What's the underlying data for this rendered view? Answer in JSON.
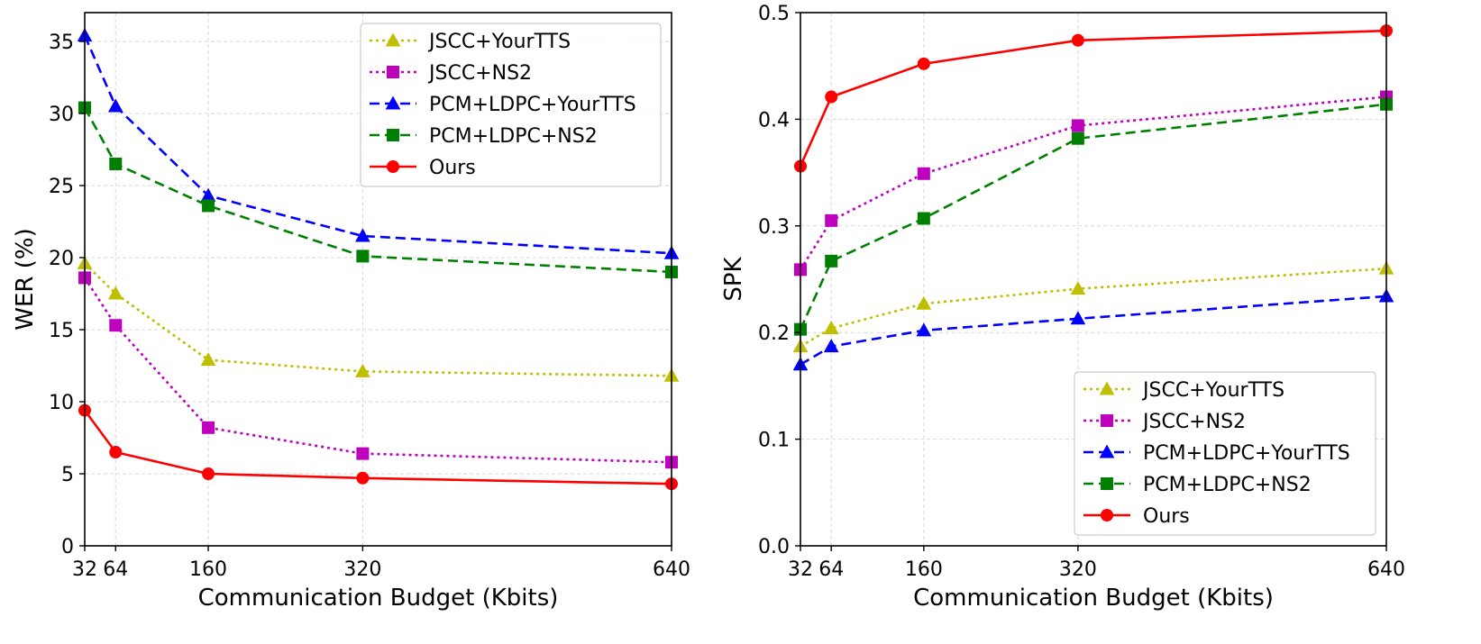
{
  "chart_data": [
    {
      "type": "line",
      "title": "",
      "xlabel": "Communication Budget (Kbits)",
      "ylabel": "WER (%)",
      "x": [
        32,
        64,
        160,
        320,
        640
      ],
      "xticks": [
        "32",
        "64",
        "160",
        "320",
        "640"
      ],
      "yticks": [
        "0",
        "5",
        "10",
        "15",
        "20",
        "25",
        "30",
        "35"
      ],
      "xlim": [
        32,
        640
      ],
      "ylim": [
        0,
        37
      ],
      "grid": true,
      "legend_position": "top-right",
      "series": [
        {
          "name": "JSCC+YourTTS",
          "values": [
            19.6,
            17.5,
            12.9,
            12.1,
            11.8
          ],
          "color": "#bfbf00",
          "marker": "triangle",
          "dash": "dotted"
        },
        {
          "name": "JSCC+NS2",
          "values": [
            18.6,
            15.3,
            8.2,
            6.4,
            5.8
          ],
          "color": "#bf00bf",
          "marker": "square",
          "dash": "dotted"
        },
        {
          "name": "PCM+LDPC+YourTTS",
          "values": [
            35.4,
            30.5,
            24.3,
            21.5,
            20.3
          ],
          "color": "#0000ff",
          "marker": "triangle",
          "dash": "dashed"
        },
        {
          "name": "PCM+LDPC+NS2",
          "values": [
            30.4,
            26.5,
            23.6,
            20.1,
            19.0
          ],
          "color": "#008000",
          "marker": "square",
          "dash": "dashed"
        },
        {
          "name": "Ours",
          "values": [
            9.4,
            6.5,
            5.0,
            4.7,
            4.3
          ],
          "color": "#ff0000",
          "marker": "circle",
          "dash": "solid"
        }
      ]
    },
    {
      "type": "line",
      "title": "",
      "xlabel": "Communication Budget (Kbits)",
      "ylabel": "SPK",
      "x": [
        32,
        64,
        160,
        320,
        640
      ],
      "xticks": [
        "32",
        "64",
        "160",
        "320",
        "640"
      ],
      "yticks": [
        "0.0",
        "0.1",
        "0.2",
        "0.3",
        "0.4",
        "0.5"
      ],
      "xlim": [
        32,
        640
      ],
      "ylim": [
        0,
        0.5
      ],
      "grid": true,
      "legend_position": "bottom-right",
      "series": [
        {
          "name": "JSCC+YourTTS",
          "values": [
            0.187,
            0.204,
            0.227,
            0.241,
            0.26
          ],
          "color": "#bfbf00",
          "marker": "triangle",
          "dash": "dotted"
        },
        {
          "name": "JSCC+NS2",
          "values": [
            0.259,
            0.305,
            0.349,
            0.394,
            0.421
          ],
          "color": "#bf00bf",
          "marker": "square",
          "dash": "dotted"
        },
        {
          "name": "PCM+LDPC+YourTTS",
          "values": [
            0.17,
            0.187,
            0.202,
            0.213,
            0.234
          ],
          "color": "#0000ff",
          "marker": "triangle",
          "dash": "dashed"
        },
        {
          "name": "PCM+LDPC+NS2",
          "values": [
            0.203,
            0.267,
            0.307,
            0.382,
            0.414
          ],
          "color": "#008000",
          "marker": "square",
          "dash": "dashed"
        },
        {
          "name": "Ours",
          "values": [
            0.356,
            0.421,
            0.452,
            0.474,
            0.483
          ],
          "color": "#ff0000",
          "marker": "circle",
          "dash": "solid"
        }
      ]
    }
  ]
}
